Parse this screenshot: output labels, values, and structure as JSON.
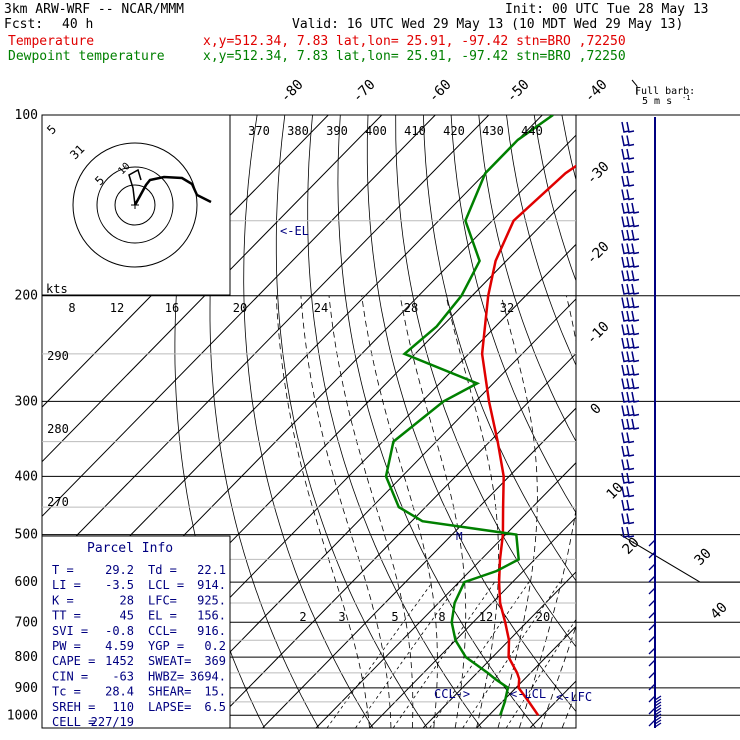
{
  "header": {
    "model": "3km ARW-WRF -- NCAR/MMM",
    "init": "Init: 00 UTC Tue 28 May 13",
    "fcst_label": "Fcst:",
    "fcst_value": "40 h",
    "valid": "Valid: 16 UTC Wed 29 May 13 (10 MDT Wed 29 May 13)",
    "temp_label": "Temperature",
    "temp_info": "x,y=512.34, 7.83 lat,lon= 25.91, -97.42 stn=BRO ,72250",
    "dew_label": "Dewpoint temperature",
    "dew_info": "x,y=512.34, 7.83 lat,lon= 25.91, -97.42 stn=BRO ,72250",
    "wind_legend": "Full barb:",
    "wind_legend2": "5 m s",
    "wind_legend_exp": "-1"
  },
  "colors": {
    "temperature": "#e00000",
    "dewpoint": "#008000",
    "annot": "#000080"
  },
  "chart_data": {
    "type": "line",
    "pressure_ticks": [
      "100",
      "200",
      "300",
      "400",
      "500",
      "600",
      "700",
      "800",
      "900",
      "1000"
    ],
    "isotherm_labels_top": [
      "-80",
      "-70",
      "-60",
      "-50",
      "-40"
    ],
    "isotherm_labels_right": [
      "-30",
      "-20",
      "-10",
      "0",
      "10",
      "20",
      "30",
      "40"
    ],
    "theta_labels": [
      "370",
      "380",
      "390",
      "400",
      "410",
      "420",
      "430",
      "440"
    ],
    "theta_labels_left": [
      "290",
      "280",
      "270"
    ],
    "mixing_ratio_labels": [
      "2",
      "3",
      "5",
      "8",
      "12",
      "20"
    ],
    "hodo_speed_labels": [
      "8",
      "12",
      "16",
      "20",
      "24",
      "28",
      "32"
    ],
    "hodo_unit": "kts",
    "hodo_ring_labels": [
      "5",
      "31",
      "5",
      "10"
    ],
    "el_label": "<-EL",
    "ccl_label": "CCL->",
    "lcl_label": "<-LCL",
    "lfc_label": "<-LFC",
    "temperature": {
      "name": "Temperature",
      "p": [
        1000,
        950,
        900,
        870,
        850,
        800,
        750,
        700,
        650,
        600,
        550,
        500,
        450,
        400,
        350,
        300,
        250,
        200,
        175,
        150,
        125,
        110,
        100
      ],
      "t": [
        29.2,
        25,
        20.5,
        19,
        17.5,
        13,
        10,
        6,
        1.5,
        -2.5,
        -6.5,
        -10.5,
        -15.5,
        -21,
        -28.5,
        -37.5,
        -47.5,
        -57,
        -62,
        -66,
        -65,
        -62,
        -58
      ]
    },
    "dewpoint": {
      "name": "Dewpoint temperature",
      "p": [
        1000,
        950,
        900,
        870,
        850,
        800,
        750,
        700,
        650,
        600,
        575,
        550,
        500,
        475,
        450,
        400,
        350,
        300,
        280,
        250,
        225,
        200,
        175,
        150,
        125,
        110,
        100
      ],
      "td": [
        22.1,
        20.5,
        18.5,
        14.5,
        12,
        5,
        0,
        -4,
        -7,
        -9,
        -5,
        -3,
        -8,
        -28,
        -35,
        -43,
        -48,
        -46,
        -43,
        -62,
        -61,
        -62,
        -65,
        -75,
        -80,
        -80,
        -78
      ]
    }
  },
  "parcel": {
    "title": "Parcel Info",
    "rows": [
      [
        "T  =",
        "29.2",
        "Td =",
        "22.1"
      ],
      [
        "LI =",
        "-3.5",
        "LCL =",
        "914."
      ],
      [
        "K  =",
        "28",
        "LFC=",
        "925."
      ],
      [
        "TT =",
        "45",
        "EL =",
        "156."
      ],
      [
        "SVI =",
        "-0.8",
        "CCL=",
        "916."
      ],
      [
        "PW =",
        "4.59",
        "YGP =",
        "0.2"
      ],
      [
        "CAPE =",
        "1452",
        "SWEAT=",
        "369"
      ],
      [
        "CIN =",
        "-63",
        "HWBZ=",
        "3694."
      ],
      [
        "Tc =",
        "28.4",
        "SHEAR=",
        "15."
      ],
      [
        "SREH =",
        "110",
        "LAPSE=",
        "6.5"
      ],
      [
        "CELL =",
        "227/19",
        "",
        ""
      ]
    ]
  }
}
